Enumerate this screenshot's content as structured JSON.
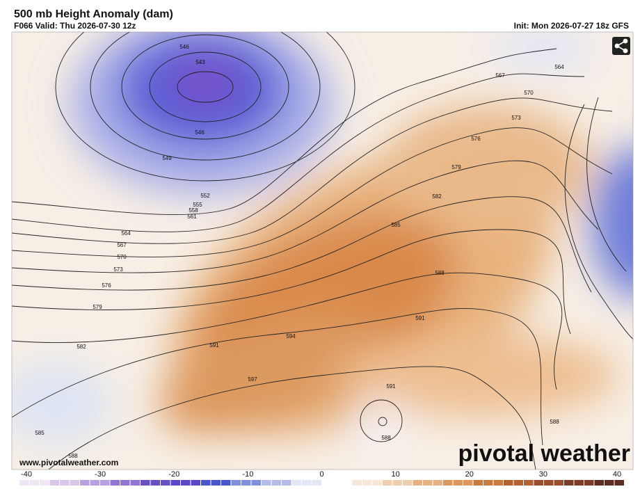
{
  "header": {
    "title": "500 mb Height Anomaly (dam)",
    "valid": "F066 Valid: Thu 2026-07-30 12z",
    "init": "Init: Mon 2026-07-27 18z GFS"
  },
  "contour_labels": [
    "546",
    "543",
    "546",
    "549",
    "552",
    "555",
    "558",
    "561",
    "564",
    "567",
    "570",
    "573",
    "576",
    "579",
    "582",
    "585",
    "588",
    "564",
    "567",
    "570",
    "573",
    "576",
    "579",
    "582",
    "585",
    "588",
    "591",
    "594",
    "591",
    "597",
    "591",
    "588",
    "588"
  ],
  "colorbar": {
    "ticks": [
      "-40",
      "-30",
      "-20",
      "-10",
      "0",
      "10",
      "20",
      "30",
      "40"
    ]
  },
  "footer": {
    "website": "www.pivotalweather.com",
    "brand": "pivotal weather"
  }
}
